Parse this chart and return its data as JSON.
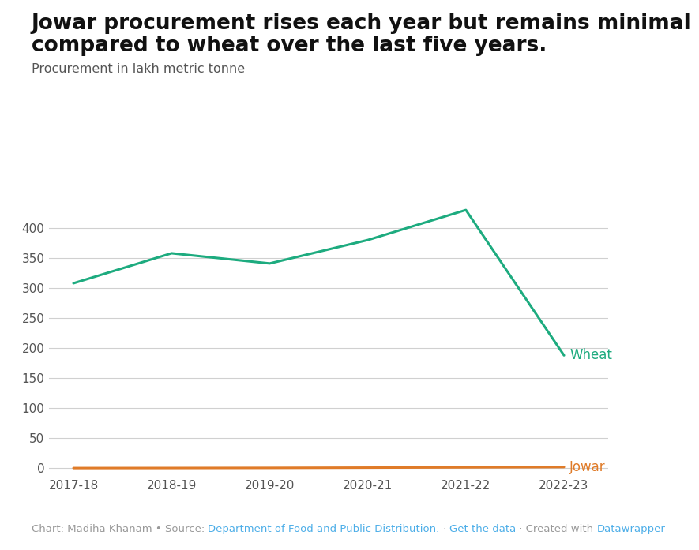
{
  "title_line1": "Jowar procurement rises each year but remains minimal",
  "title_line2": "compared to wheat over the last five years.",
  "subtitle": "Procurement in lakh metric tonne",
  "years": [
    "2017-18",
    "2018-19",
    "2019-20",
    "2020-21",
    "2021-22",
    "2022-23"
  ],
  "wheat": [
    308,
    358,
    341,
    380,
    430,
    188
  ],
  "jowar": [
    0.3,
    0.4,
    0.6,
    1.0,
    1.5,
    2.0
  ],
  "wheat_color": "#1dab7f",
  "jowar_color": "#e07b28",
  "wheat_label": "Wheat",
  "jowar_label": "Jowar",
  "ylim": [
    -8,
    450
  ],
  "yticks": [
    0,
    50,
    100,
    150,
    200,
    250,
    300,
    350,
    400
  ],
  "background_color": "#ffffff",
  "grid_color": "#d0d0d0",
  "title_fontsize": 19,
  "subtitle_fontsize": 11.5,
  "tick_fontsize": 11,
  "label_fontsize": 12,
  "footer_color": "#999999",
  "footer_link_color": "#4daee8",
  "line_width": 2.2
}
